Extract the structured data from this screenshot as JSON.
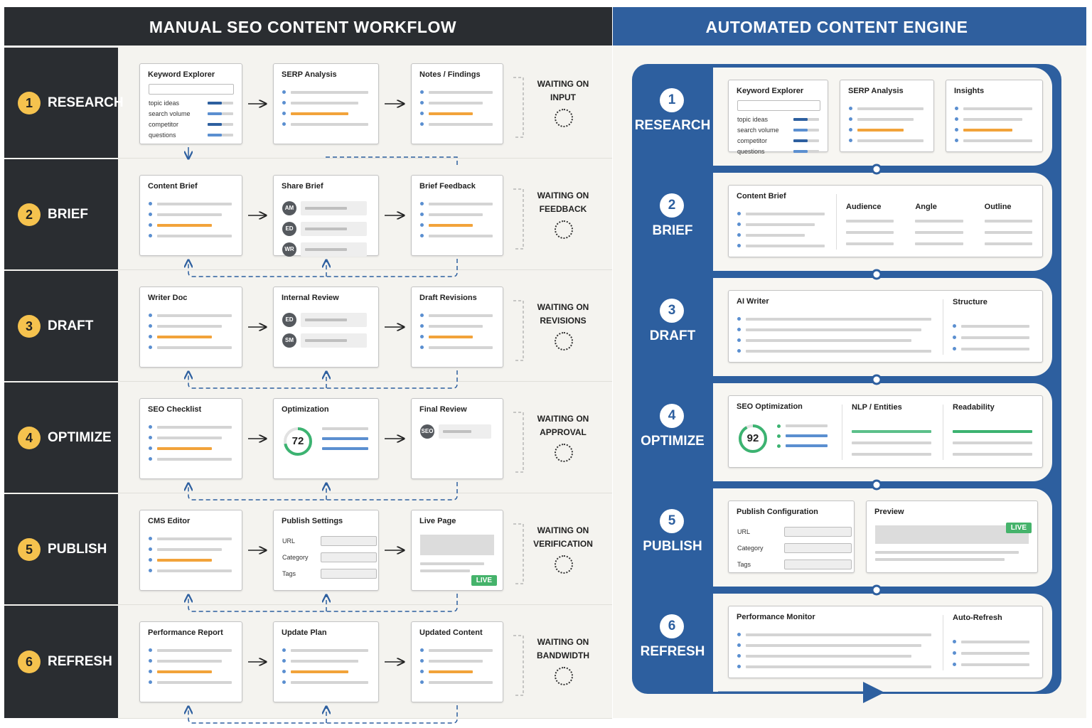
{
  "left": {
    "title": "MANUAL SEO CONTENT WORKFLOW",
    "steps": [
      {
        "number": 1,
        "label": "RESEARCH",
        "waiting": [
          "WAITING ON",
          "INPUT"
        ],
        "cards": [
          {
            "title": "Keyword Explorer",
            "items": [
              "topic ideas",
              "search volume",
              "competitor",
              "questions"
            ]
          },
          {
            "title": "SERP Analysis"
          },
          {
            "title": "Notes / Findings"
          }
        ]
      },
      {
        "number": 2,
        "label": "BRIEF",
        "waiting": [
          "WAITING ON",
          "FEEDBACK"
        ],
        "cards": [
          {
            "title": "Content Brief"
          },
          {
            "title": "Share Brief",
            "avatars": [
              "AM",
              "ED",
              "WR"
            ]
          },
          {
            "title": "Brief Feedback"
          }
        ]
      },
      {
        "number": 3,
        "label": "DRAFT",
        "waiting": [
          "WAITING ON",
          "REVISIONS"
        ],
        "cards": [
          {
            "title": "Writer Doc"
          },
          {
            "title": "Internal Review",
            "avatars": [
              "ED",
              "SM"
            ]
          },
          {
            "title": "Draft Revisions"
          }
        ]
      },
      {
        "number": 4,
        "label": "OPTIMIZE",
        "waiting": [
          "WAITING ON",
          "APPROVAL"
        ],
        "cards": [
          {
            "title": "SEO Checklist"
          },
          {
            "title": "Optimization",
            "score": 72
          },
          {
            "title": "Final Review",
            "avatars": [
              "SEO"
            ]
          }
        ]
      },
      {
        "number": 5,
        "label": "PUBLISH",
        "waiting": [
          "WAITING ON",
          "VERIFICATION"
        ],
        "cards": [
          {
            "title": "CMS Editor"
          },
          {
            "title": "Publish Settings",
            "fields": [
              "URL",
              "Category",
              "Tags"
            ]
          },
          {
            "title": "Live Page",
            "badge": "LIVE"
          }
        ]
      },
      {
        "number": 6,
        "label": "REFRESH",
        "waiting": [
          "WAITING ON",
          "BANDWIDTH"
        ],
        "cards": [
          {
            "title": "Performance Report"
          },
          {
            "title": "Update Plan"
          },
          {
            "title": "Updated Content"
          }
        ]
      }
    ]
  },
  "right": {
    "title": "AUTOMATED CONTENT ENGINE",
    "steps": [
      {
        "number": 1,
        "label": "RESEARCH",
        "cards": [
          {
            "title": "Keyword Explorer",
            "items": [
              "topic ideas",
              "search volume",
              "competitor",
              "questions"
            ]
          },
          {
            "title": "SERP Analysis"
          },
          {
            "title": "Insights"
          }
        ]
      },
      {
        "number": 2,
        "label": "BRIEF",
        "cards": [
          {
            "title": "Content Brief",
            "columns": [
              "Audience",
              "Angle",
              "Outline"
            ]
          }
        ]
      },
      {
        "number": 3,
        "label": "DRAFT",
        "cards": [
          {
            "title": "AI Writer",
            "columns": [
              "Structure"
            ]
          }
        ]
      },
      {
        "number": 4,
        "label": "OPTIMIZE",
        "cards": [
          {
            "title": "SEO Optimization",
            "score": 92,
            "columns": [
              "NLP / Entities",
              "Readability"
            ]
          }
        ]
      },
      {
        "number": 5,
        "label": "PUBLISH",
        "cards": [
          {
            "title": "Publish Configuration",
            "fields": [
              "URL",
              "Category",
              "Tags"
            ]
          },
          {
            "title": "Preview",
            "badge": "LIVE"
          }
        ]
      },
      {
        "number": 6,
        "label": "REFRESH",
        "cards": [
          {
            "title": "Performance Monitor",
            "columns": [
              "Auto-Refresh"
            ]
          }
        ]
      }
    ]
  }
}
